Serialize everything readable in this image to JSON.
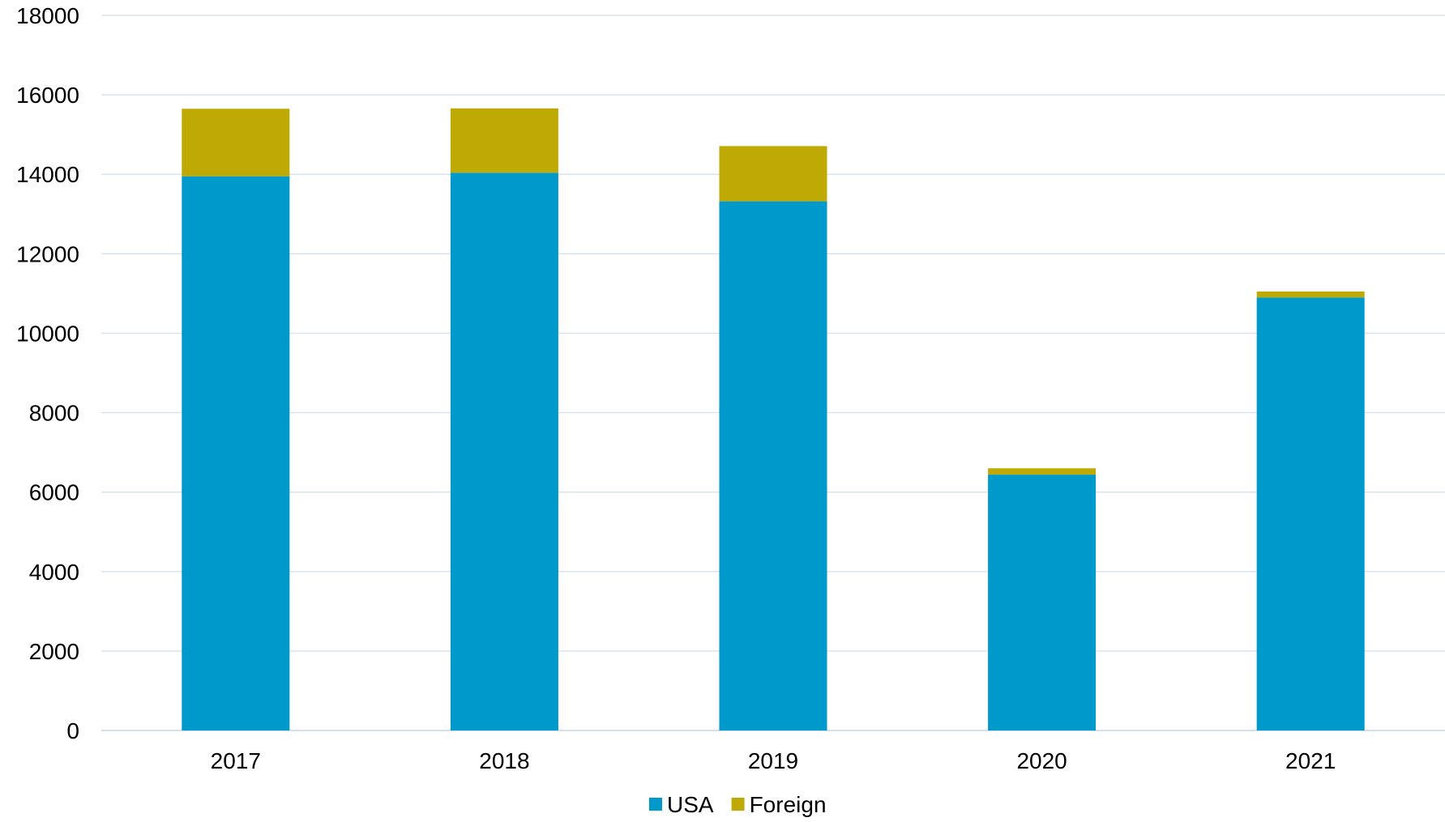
{
  "chart_data": {
    "type": "bar",
    "stacked": true,
    "categories": [
      "2017",
      "2018",
      "2019",
      "2020",
      "2021"
    ],
    "series": [
      {
        "name": "USA",
        "color": "#0099CC",
        "values": [
          13950,
          14040,
          13320,
          6440,
          10900
        ]
      },
      {
        "name": "Foreign",
        "color": "#BFAA05",
        "values": [
          1700,
          1620,
          1390,
          160,
          150
        ]
      }
    ],
    "title": "",
    "xlabel": "",
    "ylabel": "",
    "ylim": [
      0,
      18000
    ],
    "yticks": [
      0,
      2000,
      4000,
      6000,
      8000,
      10000,
      12000,
      14000,
      16000,
      18000
    ],
    "grid": true,
    "gridline_color": "#D9E3F0",
    "legend_position": "bottom-center"
  }
}
